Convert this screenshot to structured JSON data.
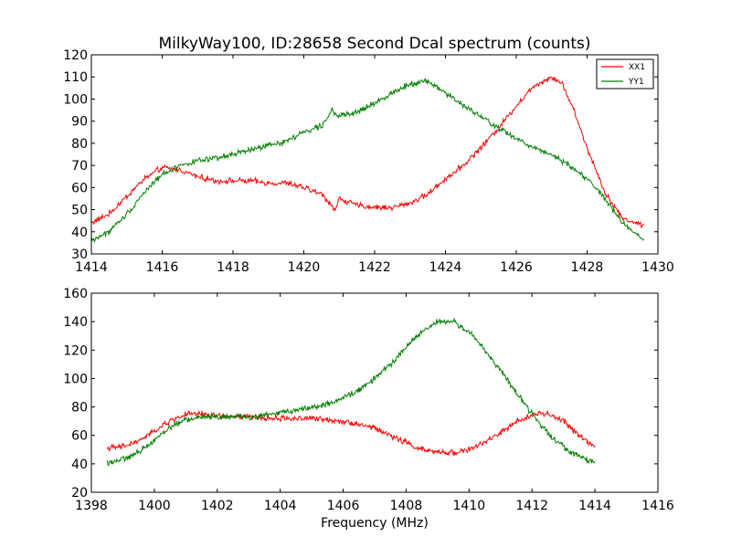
{
  "chart_data": [
    {
      "type": "line",
      "title": "MilkyWay100, ID:28658 Second Dcal spectrum (counts)",
      "xlabel": "",
      "ylabel": "",
      "xlim": [
        1414,
        1430
      ],
      "ylim": [
        30,
        120
      ],
      "xticks": [
        1414,
        1416,
        1418,
        1420,
        1422,
        1424,
        1426,
        1428,
        1430
      ],
      "yticks": [
        30,
        40,
        50,
        60,
        70,
        80,
        90,
        100,
        110,
        120
      ],
      "grid": false,
      "legend": "top-right",
      "series": [
        {
          "name": "XX1",
          "color": "#ff0000",
          "x": [
            1414.0,
            1414.5,
            1415.0,
            1415.5,
            1416.0,
            1416.5,
            1417.0,
            1417.5,
            1418.0,
            1418.5,
            1419.0,
            1419.5,
            1420.0,
            1420.5,
            1420.9,
            1421.0,
            1421.5,
            1422.0,
            1422.5,
            1423.0,
            1423.5,
            1424.0,
            1424.5,
            1425.0,
            1425.5,
            1426.0,
            1426.5,
            1427.0,
            1427.3,
            1427.6,
            1428.0,
            1428.5,
            1429.0,
            1429.6
          ],
          "values": [
            44,
            48,
            56,
            64,
            69,
            68,
            65,
            63,
            63,
            63,
            62,
            62,
            60,
            57,
            50,
            55,
            52,
            51,
            51,
            53,
            57,
            64,
            70,
            78,
            87,
            97,
            106,
            110,
            107,
            96,
            78,
            58,
            46,
            43
          ]
        },
        {
          "name": "YY1",
          "color": "#008000",
          "x": [
            1414.0,
            1414.5,
            1415.0,
            1415.5,
            1416.0,
            1416.5,
            1417.0,
            1417.5,
            1418.0,
            1418.5,
            1419.0,
            1419.5,
            1420.0,
            1420.5,
            1420.8,
            1421.0,
            1421.5,
            1422.0,
            1422.5,
            1423.0,
            1423.5,
            1424.0,
            1424.5,
            1425.0,
            1425.5,
            1426.0,
            1426.5,
            1427.0,
            1427.5,
            1428.0,
            1428.5,
            1429.0,
            1429.6
          ],
          "values": [
            36,
            40,
            48,
            58,
            66,
            70,
            72,
            73,
            75,
            77,
            79,
            81,
            85,
            88,
            95,
            92,
            94,
            98,
            103,
            107,
            108,
            103,
            97,
            92,
            87,
            82,
            78,
            75,
            70,
            64,
            55,
            44,
            36
          ]
        }
      ]
    },
    {
      "type": "line",
      "title": "",
      "xlabel": "Frequency (MHz)",
      "ylabel": "",
      "xlim": [
        1398,
        1416
      ],
      "ylim": [
        20,
        160
      ],
      "xticks": [
        1398,
        1400,
        1402,
        1404,
        1406,
        1408,
        1410,
        1412,
        1414,
        1416
      ],
      "yticks": [
        20,
        40,
        60,
        80,
        100,
        120,
        140,
        160
      ],
      "grid": false,
      "series": [
        {
          "color": "#ff0000",
          "x": [
            1398.5,
            1399.0,
            1399.5,
            1400.0,
            1400.5,
            1401.0,
            1401.5,
            1402.0,
            1402.5,
            1403.0,
            1403.5,
            1404.0,
            1404.5,
            1405.0,
            1405.5,
            1406.0,
            1406.5,
            1407.0,
            1407.5,
            1408.0,
            1408.5,
            1409.0,
            1409.5,
            1410.0,
            1410.5,
            1411.0,
            1411.5,
            1412.0,
            1412.5,
            1413.0,
            1413.5,
            1414.0
          ],
          "values": [
            51,
            52,
            56,
            63,
            70,
            75,
            75,
            74,
            73,
            73,
            72,
            72,
            72,
            72,
            71,
            70,
            68,
            65,
            60,
            55,
            50,
            48,
            48,
            50,
            55,
            62,
            69,
            75,
            75,
            70,
            60,
            52
          ]
        },
        {
          "color": "#008000",
          "x": [
            1398.5,
            1399.0,
            1399.5,
            1400.0,
            1400.5,
            1401.0,
            1401.5,
            1402.0,
            1402.5,
            1403.0,
            1403.5,
            1404.0,
            1404.5,
            1405.0,
            1405.5,
            1406.0,
            1406.5,
            1407.0,
            1407.5,
            1408.0,
            1408.5,
            1409.0,
            1409.5,
            1410.0,
            1410.5,
            1411.0,
            1411.5,
            1412.0,
            1412.5,
            1413.0,
            1413.5,
            1414.0
          ],
          "values": [
            41,
            43,
            48,
            57,
            66,
            71,
            73,
            73,
            73,
            73,
            74,
            76,
            78,
            80,
            82,
            86,
            92,
            100,
            110,
            122,
            133,
            140,
            140,
            133,
            120,
            106,
            90,
            75,
            62,
            52,
            45,
            41
          ]
        }
      ]
    }
  ]
}
